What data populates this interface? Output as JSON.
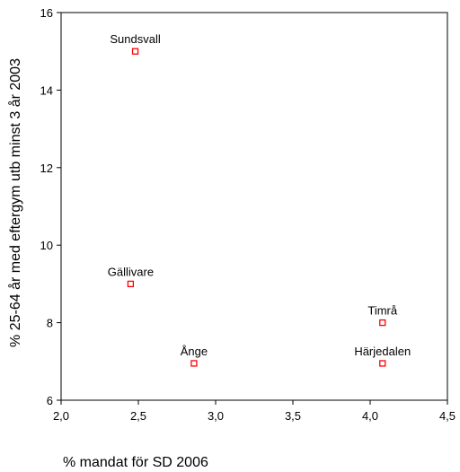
{
  "chart_data": {
    "type": "scatter",
    "xlabel": "% mandat för SD 2006",
    "ylabel": "% 25-64 år med eftergym utb minst 3 år 2003",
    "xlim": [
      2.0,
      4.5
    ],
    "ylim": [
      6,
      16
    ],
    "x_ticks": [
      "2,0",
      "2,5",
      "3,0",
      "3,5",
      "4,0",
      "4,5"
    ],
    "y_ticks": [
      "6",
      "8",
      "10",
      "12",
      "14",
      "16"
    ],
    "grid": false,
    "marker_color": "#ff0000",
    "points": [
      {
        "label": "Sundsvall",
        "x": 2.48,
        "y": 15.0
      },
      {
        "label": "Gällivare",
        "x": 2.45,
        "y": 9.0
      },
      {
        "label": "Ånge",
        "x": 2.86,
        "y": 6.95
      },
      {
        "label": "Timrå",
        "x": 4.08,
        "y": 8.0
      },
      {
        "label": "Härjedalen",
        "x": 4.08,
        "y": 6.95
      }
    ]
  }
}
